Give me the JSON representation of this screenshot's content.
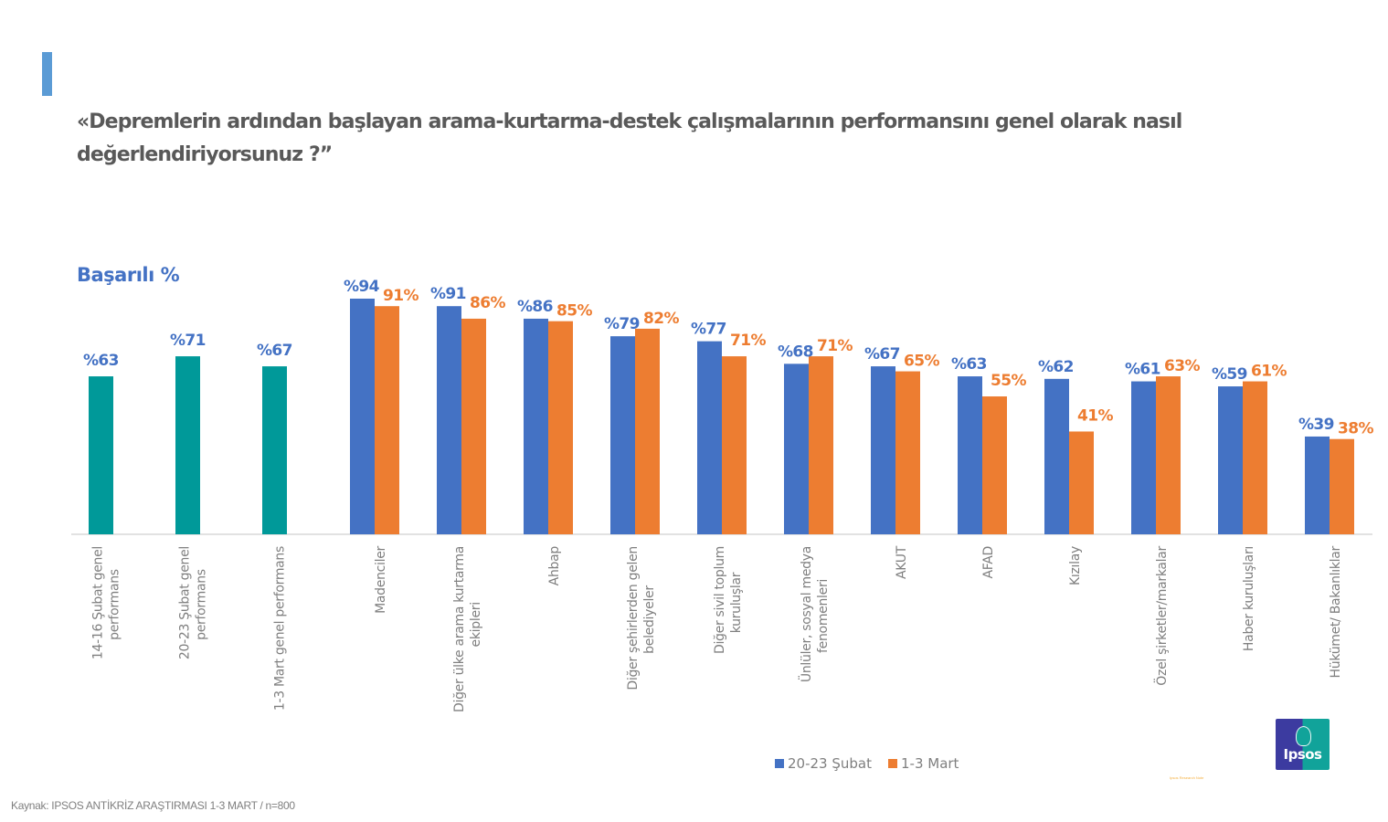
{
  "header": {
    "title": "«Depremlerin ardından başlayan arama-kurtarma-destek çalışmalarının performansını genel olarak nasıl değerlendiriyorsunuz ?”",
    "subtitle": "Başarılı %"
  },
  "legend": [
    {
      "label": "20-23 Şubat",
      "color": "#4472c4"
    },
    {
      "label": "1-3 Mart",
      "color": "#ed7d31"
    }
  ],
  "source": "Kaynak: IPSOS ANTİKRİZ ARAŞTIRMASI   1-3 MART  / n=800",
  "logo": {
    "text": "Ipsos",
    "note": "Ipsos Research Note"
  },
  "colors": {
    "overall": "#009999",
    "series1": "#4472c4",
    "series2": "#ed7d31",
    "axis": "#d9d9d9",
    "title": "#595959",
    "accent": "#5b9bd5"
  },
  "chart_data": {
    "type": "bar",
    "title": "«Depremlerin ardından başlayan arama-kurtarma-destek çalışmalarının performansını genel olarak nasıl değerlendiriyorsunuz ?”",
    "ylabel": "Başarılı %",
    "xlabel": "",
    "ylim": [
      0,
      100
    ],
    "grid": false,
    "legend_position": "bottom",
    "overall": {
      "name": "Genel performans",
      "categories": [
        "14-16 Şubat genel performans",
        "20-23 Şubat genel performans",
        "1-3 Mart genel performans"
      ],
      "values": [
        63,
        71,
        67
      ],
      "labels": [
        "%63",
        "%71",
        "%67"
      ]
    },
    "categories": [
      "Madenciler",
      "Diğer ülke arama kurtarma ekipleri",
      "Ahbap",
      "Diğer şehirlerden gelen belediyeler",
      "Diğer sivil toplum kuruluşlar",
      "Ünlüler, sosyal medya fenomenleri",
      "AKUT",
      "AFAD",
      "Kızılay",
      "Özel şirketler/markalar",
      "Haber kuruluşları",
      "Hükümet/ Bakanlıklar"
    ],
    "series": [
      {
        "name": "20-23 Şubat",
        "values": [
          94,
          91,
          86,
          79,
          77,
          68,
          67,
          63,
          62,
          61,
          59,
          39
        ],
        "labels": [
          "%94",
          "%91",
          "%86",
          "%79",
          "%77",
          "%68",
          "%67",
          "%63",
          "%62",
          "%61",
          "%59",
          "%39"
        ]
      },
      {
        "name": "1-3 Mart",
        "values": [
          91,
          86,
          85,
          82,
          71,
          71,
          65,
          55,
          41,
          63,
          61,
          38
        ],
        "labels": [
          "91%",
          "86%",
          "85%",
          "82%",
          "71%",
          "71%",
          "65%",
          "55%",
          "41%",
          "63%",
          "61%",
          "38%"
        ]
      }
    ]
  }
}
